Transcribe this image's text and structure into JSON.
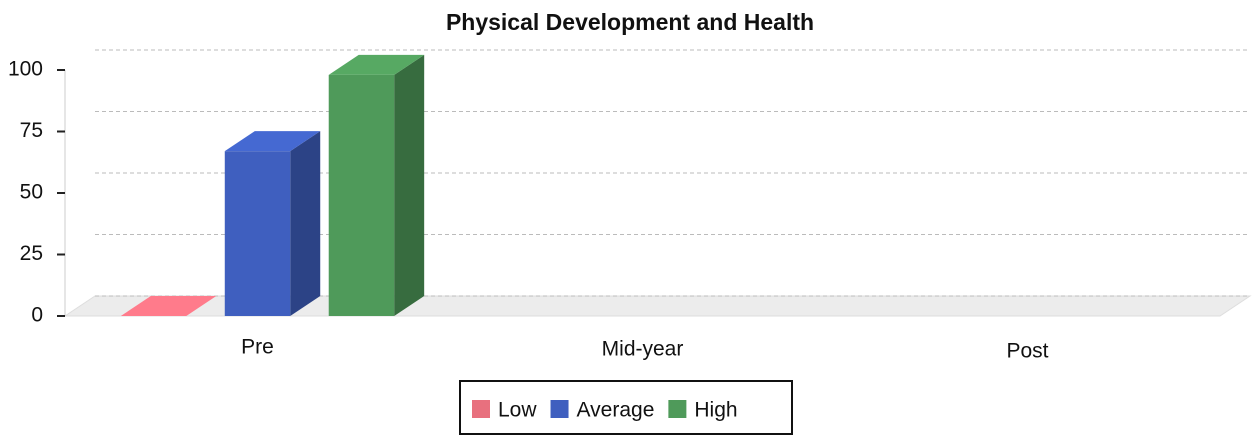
{
  "chart_data": {
    "type": "bar",
    "title": "Physical Development and Health",
    "categories": [
      "Pre",
      "Mid-year",
      "Post"
    ],
    "series": [
      {
        "name": "Low",
        "color": "#e8707e",
        "values": [
          0,
          null,
          null
        ]
      },
      {
        "name": "Average",
        "color": "#3f5fbf",
        "values": [
          67,
          null,
          null
        ]
      },
      {
        "name": "High",
        "color": "#4f9a5a",
        "values": [
          98,
          null,
          null
        ]
      }
    ],
    "ylim": [
      0,
      100
    ],
    "yticks": [
      0,
      25,
      50,
      75,
      100
    ],
    "grid": true,
    "legend": "bottom"
  }
}
